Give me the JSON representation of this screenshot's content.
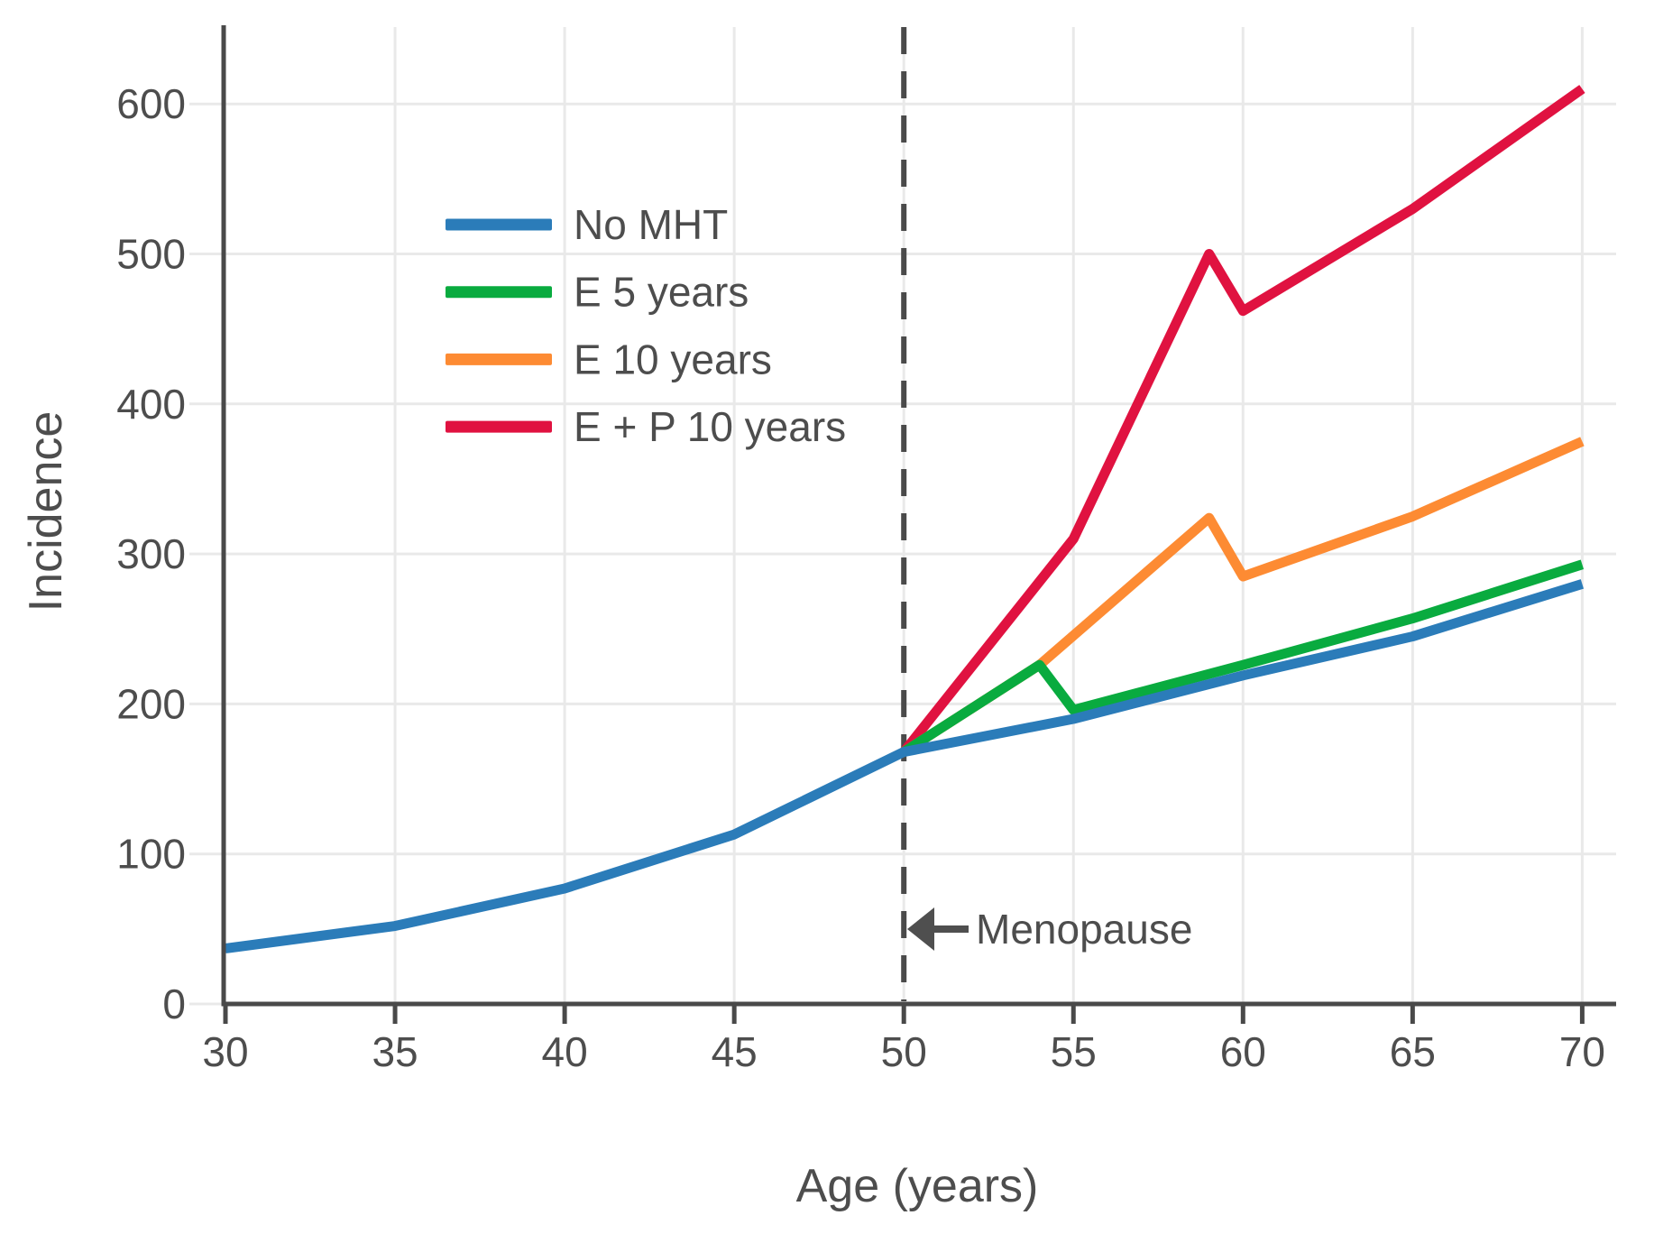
{
  "chart_data": {
    "type": "line",
    "title": "",
    "xlabel": "Age (years)",
    "ylabel": "Incidence",
    "x_ticks": [
      30,
      35,
      40,
      45,
      50,
      55,
      60,
      65,
      70
    ],
    "y_ticks": [
      0,
      100,
      200,
      300,
      400,
      500,
      600
    ],
    "xlim": [
      30,
      71
    ],
    "ylim": [
      0,
      650
    ],
    "grid": true,
    "legend_position": "upper left inside plot",
    "series": [
      {
        "name": "No MHT",
        "color": "#2b7cb9",
        "x": [
          30,
          35,
          40,
          45,
          50,
          55,
          60,
          65,
          70
        ],
        "y": [
          37,
          52,
          77,
          113,
          168,
          190,
          219,
          245,
          280
        ]
      },
      {
        "name": "E 5 years",
        "color": "#09ab3f",
        "x": [
          50,
          54,
          55,
          60,
          65,
          70
        ],
        "y": [
          168,
          226,
          196,
          226,
          257,
          293
        ]
      },
      {
        "name": "E 10 years",
        "color": "#fd8b33",
        "x": [
          50,
          54,
          59,
          60,
          65,
          70
        ],
        "y": [
          168,
          226,
          324,
          285,
          325,
          375
        ]
      },
      {
        "name": "E + P 10 years",
        "color": "#e01240",
        "x": [
          50,
          55,
          59,
          60,
          65,
          70
        ],
        "y": [
          168,
          310,
          500,
          462,
          530,
          610
        ]
      }
    ],
    "annotations": {
      "menopause_line": {
        "x": 50,
        "style": "dashed",
        "color": "#4a4a4a"
      },
      "menopause_label": {
        "text": "Menopause",
        "x": 50,
        "y": 50,
        "arrow": "left"
      }
    },
    "axis_colors": {
      "spine": "#494949",
      "grid": "#e9e9e9",
      "text": "#4d4d4d"
    }
  }
}
